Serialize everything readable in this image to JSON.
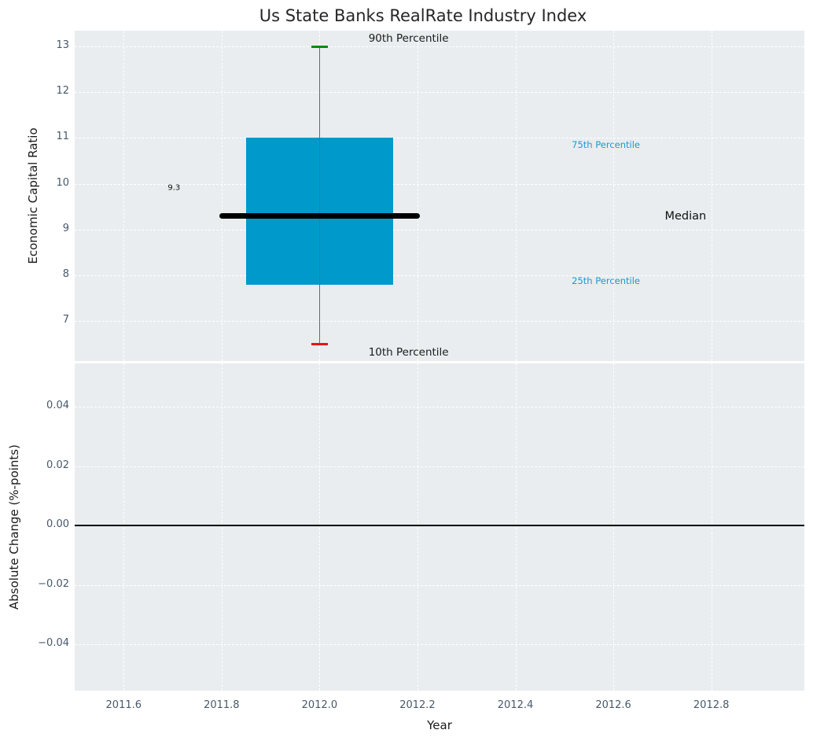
{
  "title": "Us State Banks RealRate Industry Index",
  "colors": {
    "figure_bg": "#ffffff",
    "plot_bg": "#e9edef",
    "grid": "#ffffff",
    "box_fill": "#0099cc",
    "median_line": "#000000",
    "whisker": "#6a6a6a",
    "p90_cap": "#0b8a0b",
    "p10_cap": "#ee1111",
    "zero_line": "#000000",
    "tick_label": "#47586b",
    "title_text": "#262626",
    "axis_label_text": "#1a1a1a",
    "percentile_label": "#189ad3"
  },
  "chart_data": [
    {
      "type": "boxplot",
      "title": "Us State Banks RealRate Industry Index",
      "xlabel": "Year",
      "ylabel": "Economic Capital Ratio",
      "grid": true,
      "xlim": [
        2011.5,
        2012.99
      ],
      "ylim": [
        6.125,
        13.345
      ],
      "xticks": {
        "values": [
          2011.6,
          2011.8,
          2012.0,
          2012.2,
          2012.4,
          2012.6,
          2012.8
        ],
        "labels": [
          "2011.6",
          "2011.8",
          "2012.0",
          "2012.2",
          "2012.4",
          "2012.6",
          "2012.8"
        ]
      },
      "yticks": {
        "values": [
          13,
          12,
          11,
          10,
          9,
          8,
          7
        ],
        "labels": [
          "13",
          "12",
          "11",
          "10",
          "9",
          "8",
          "7"
        ]
      },
      "box": {
        "x": 2012.0,
        "p10": 6.5,
        "p25": 7.8,
        "median": 9.3,
        "p75": 11.0,
        "p90": 13.0,
        "box_width_years": 0.3,
        "median_line_width_years": 0.41,
        "median_value_label": "9.3"
      },
      "annotations": [
        {
          "id": "90th-percentile",
          "text": "90th Percentile",
          "x": 2012.1,
          "y": 13.17,
          "color": "#1a1a1a",
          "size": 13.5
        },
        {
          "id": "10th-percentile",
          "text": "10th Percentile",
          "x": 2012.1,
          "y": 6.32,
          "color": "#1a1a1a",
          "size": 13.5
        },
        {
          "id": "75th-percentile",
          "text": "75th Percentile",
          "x": 2012.515,
          "y": 10.86,
          "color": "#189ad3",
          "size": 11.5
        },
        {
          "id": "25th-percentile",
          "text": "25th Percentile",
          "x": 2012.515,
          "y": 7.875,
          "color": "#189ad3",
          "size": 11.5
        },
        {
          "id": "median",
          "text": "Median",
          "x": 2012.705,
          "y": 9.28,
          "color": "#111111",
          "size": 14.5
        },
        {
          "id": "median-value",
          "text": "9.3",
          "x": 2011.69,
          "y": 9.9,
          "color": "#111111",
          "size": 10
        }
      ]
    },
    {
      "type": "line",
      "ylabel": "Absolute Change (%-points)",
      "grid": true,
      "ylim": [
        -0.0556,
        0.0546
      ],
      "yticks": {
        "values": [
          0.04,
          0.02,
          0.0,
          -0.02,
          -0.04
        ],
        "labels": [
          "0.04",
          "0.02",
          "0.00",
          "−0.02",
          "−0.04"
        ]
      },
      "zero_line": 0.0,
      "series": []
    }
  ]
}
